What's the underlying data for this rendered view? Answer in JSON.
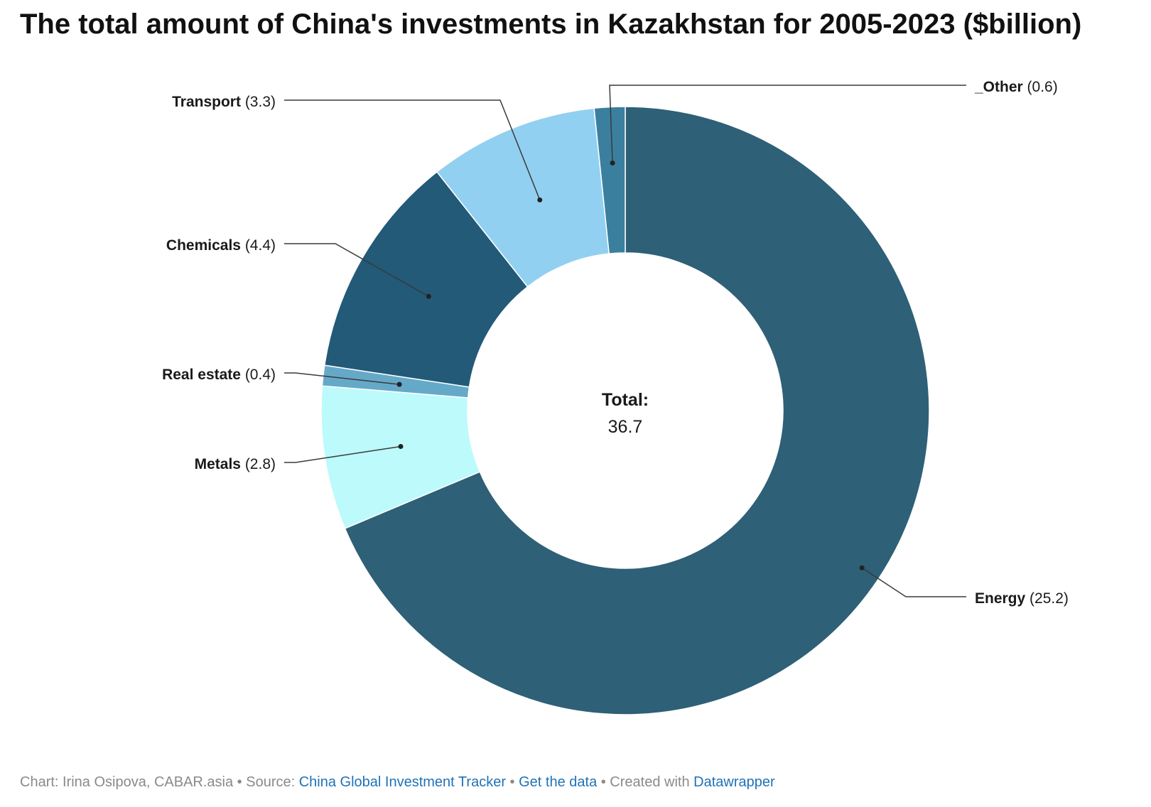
{
  "chart_data": {
    "type": "pie",
    "title": "The total amount of China's investments in Kazakhstan for 2005-2023 ($billion)",
    "slices": [
      {
        "name": "Energy",
        "value": 25.2,
        "display": "25.2",
        "color": "#2e6077"
      },
      {
        "name": "Metals",
        "value": 2.8,
        "display": "2.8",
        "color": "#bcfafb"
      },
      {
        "name": "Real estate",
        "value": 0.4,
        "display": "0.4",
        "color": "#65a9c9"
      },
      {
        "name": "Chemicals",
        "value": 4.4,
        "display": "4.4",
        "color": "#225a78"
      },
      {
        "name": "Transport",
        "value": 3.3,
        "display": "3.3",
        "color": "#92d0f1"
      },
      {
        "name": "_Other",
        "value": 0.6,
        "display": "0.6",
        "color": "#3b7f9f"
      }
    ],
    "center": {
      "label": "Total:",
      "value": "36.7"
    }
  },
  "footer": {
    "chart_prefix": "Chart: Irina Osipova, CABAR.asia",
    "sep1": " • Source: ",
    "source_link": "China Global Investment Tracker",
    "sep2": " • ",
    "data_link": "Get the data",
    "sep3": " • Created with ",
    "tool_link": "Datawrapper"
  }
}
